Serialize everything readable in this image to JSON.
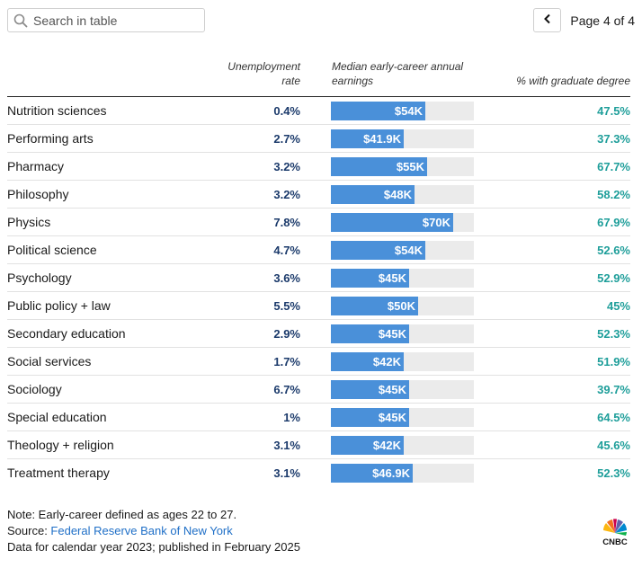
{
  "search": {
    "placeholder": "Search in table",
    "icon": "search-icon"
  },
  "pager": {
    "label": "Page 4 of 4",
    "icon": "chevron-left-icon"
  },
  "headers": {
    "unemployment": [
      "Unemployment",
      "rate"
    ],
    "earnings": [
      "Median early-career annual",
      "earnings"
    ],
    "graduate": "% with graduate degree"
  },
  "colors": {
    "bar": "#4a90d9",
    "track": "#ebebeb",
    "unemployment_text": "#1b3a6b",
    "graduate_text": "#1e9e9a",
    "link": "#1f6fc7"
  },
  "rows": [
    {
      "major": "Nutrition sciences",
      "unemployment": "0.4%",
      "earnings_label": "$54K",
      "earnings": 54000,
      "graduate": "47.5%"
    },
    {
      "major": "Performing arts",
      "unemployment": "2.7%",
      "earnings_label": "$41.9K",
      "earnings": 41900,
      "graduate": "37.3%"
    },
    {
      "major": "Pharmacy",
      "unemployment": "3.2%",
      "earnings_label": "$55K",
      "earnings": 55000,
      "graduate": "67.7%"
    },
    {
      "major": "Philosophy",
      "unemployment": "3.2%",
      "earnings_label": "$48K",
      "earnings": 48000,
      "graduate": "58.2%"
    },
    {
      "major": "Physics",
      "unemployment": "7.8%",
      "earnings_label": "$70K",
      "earnings": 70000,
      "graduate": "67.9%"
    },
    {
      "major": "Political science",
      "unemployment": "4.7%",
      "earnings_label": "$54K",
      "earnings": 54000,
      "graduate": "52.6%"
    },
    {
      "major": "Psychology",
      "unemployment": "3.6%",
      "earnings_label": "$45K",
      "earnings": 45000,
      "graduate": "52.9%"
    },
    {
      "major": "Public policy + law",
      "unemployment": "5.5%",
      "earnings_label": "$50K",
      "earnings": 50000,
      "graduate": "45%"
    },
    {
      "major": "Secondary education",
      "unemployment": "2.9%",
      "earnings_label": "$45K",
      "earnings": 45000,
      "graduate": "52.3%"
    },
    {
      "major": "Social services",
      "unemployment": "1.7%",
      "earnings_label": "$42K",
      "earnings": 42000,
      "graduate": "51.9%"
    },
    {
      "major": "Sociology",
      "unemployment": "6.7%",
      "earnings_label": "$45K",
      "earnings": 45000,
      "graduate": "39.7%"
    },
    {
      "major": "Special education",
      "unemployment": "1%",
      "earnings_label": "$45K",
      "earnings": 45000,
      "graduate": "64.5%"
    },
    {
      "major": "Theology + religion",
      "unemployment": "3.1%",
      "earnings_label": "$42K",
      "earnings": 42000,
      "graduate": "45.6%"
    },
    {
      "major": "Treatment therapy",
      "unemployment": "3.1%",
      "earnings_label": "$46.9K",
      "earnings": 46900,
      "graduate": "52.3%"
    }
  ],
  "notes": {
    "note": "Note: Early-career defined as ages 22 to 27.",
    "source_prefix": "Source: ",
    "source_link": "Federal Reserve Bank of New York",
    "data_line": "Data for calendar year 2023; published in February 2025"
  },
  "logo": {
    "text": "CNBC",
    "icon": "nbc-peacock-icon"
  },
  "chart_data": {
    "type": "table",
    "columns": [
      "Unemployment rate",
      "Median early-career annual earnings",
      "% with graduate degree"
    ],
    "categories": [
      "Nutrition sciences",
      "Performing arts",
      "Pharmacy",
      "Philosophy",
      "Physics",
      "Political science",
      "Psychology",
      "Public policy + law",
      "Secondary education",
      "Social services",
      "Sociology",
      "Special education",
      "Theology + religion",
      "Treatment therapy"
    ],
    "series": [
      {
        "name": "Unemployment rate",
        "values": [
          0.4,
          2.7,
          3.2,
          3.2,
          7.8,
          4.7,
          3.6,
          5.5,
          2.9,
          1.7,
          6.7,
          1,
          3.1,
          3.1
        ]
      },
      {
        "name": "Median early-career annual earnings",
        "values": [
          54000,
          41900,
          55000,
          48000,
          70000,
          54000,
          45000,
          50000,
          45000,
          42000,
          45000,
          45000,
          42000,
          46900
        ]
      },
      {
        "name": "% with graduate degree",
        "values": [
          47.5,
          37.3,
          67.7,
          58.2,
          67.9,
          52.6,
          52.9,
          45,
          52.3,
          51.9,
          39.7,
          64.5,
          45.6,
          52.3
        ]
      }
    ],
    "earnings_bar_max": 82000
  }
}
